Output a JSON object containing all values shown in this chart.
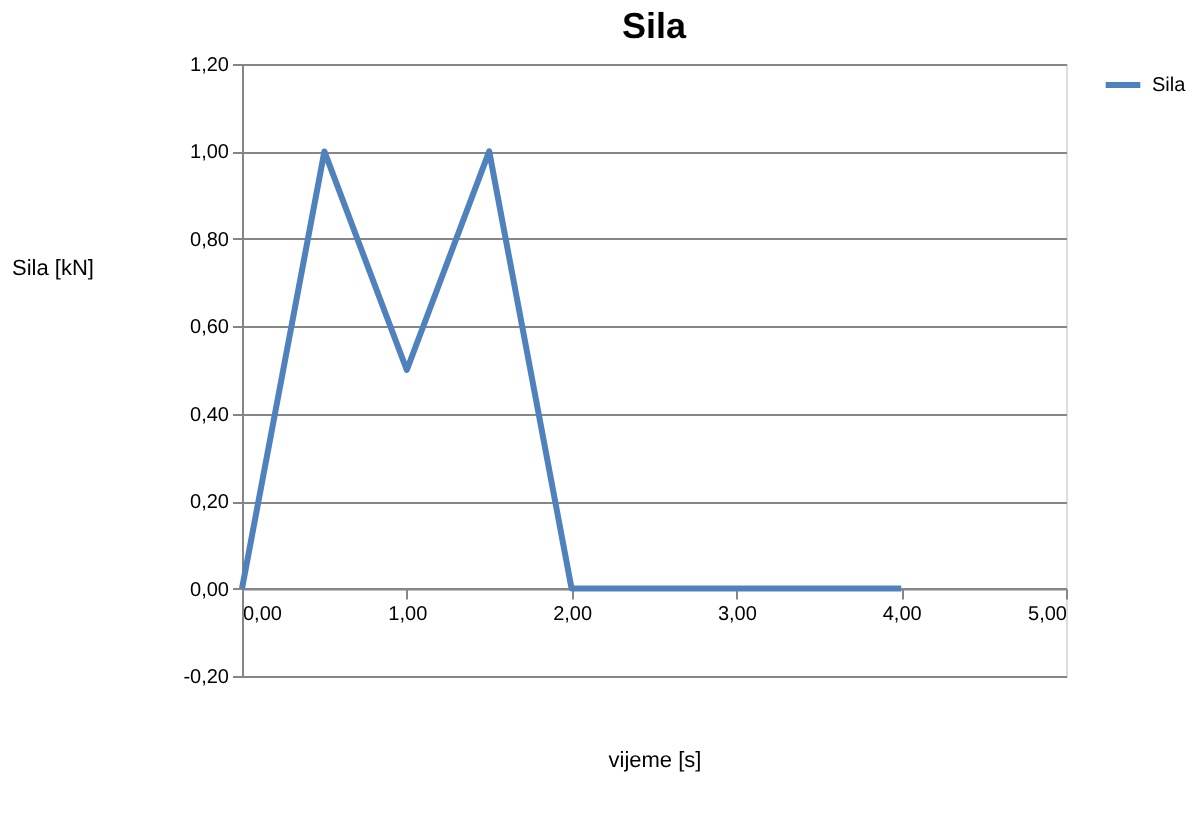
{
  "chart_data": {
    "type": "line",
    "title": "Sila",
    "xlabel": "vijeme [s]",
    "ylabel": "Sila [kN]",
    "x": [
      0,
      0.5,
      1,
      1.5,
      2,
      4
    ],
    "series": [
      {
        "name": "Sila",
        "color": "#4f81bd",
        "values": [
          0,
          1,
          0.5,
          1,
          0,
          0
        ]
      }
    ],
    "xlim": [
      0,
      5
    ],
    "ylim": [
      -0.2,
      1.2
    ],
    "xticks": [
      {
        "value": 0,
        "label": "0,00"
      },
      {
        "value": 1,
        "label": "1,00"
      },
      {
        "value": 2,
        "label": "2,00"
      },
      {
        "value": 3,
        "label": "3,00"
      },
      {
        "value": 4,
        "label": "4,00"
      },
      {
        "value": 5,
        "label": "5,00"
      }
    ],
    "yticks": [
      {
        "value": -0.2,
        "label": "-0,20"
      },
      {
        "value": 0,
        "label": "0,00"
      },
      {
        "value": 0.2,
        "label": "0,20"
      },
      {
        "value": 0.4,
        "label": "0,40"
      },
      {
        "value": 0.6,
        "label": "0,60"
      },
      {
        "value": 0.8,
        "label": "0,80"
      },
      {
        "value": 1,
        "label": "1,00"
      },
      {
        "value": 1.2,
        "label": "1,20"
      }
    ],
    "grid": "y",
    "legend": "right",
    "marker": "none",
    "line_style": "solid"
  }
}
